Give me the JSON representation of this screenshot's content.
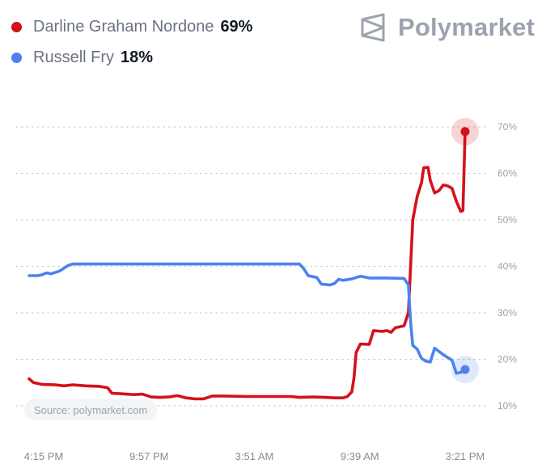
{
  "brand": {
    "name": "Polymarket",
    "logo_icon": "polymarket-logo-icon"
  },
  "source_note": "Source: polymarket.com",
  "chart_data": {
    "type": "line",
    "x_tick_labels": [
      "4:15 PM",
      "9:57 PM",
      "3:51 AM",
      "9:39 AM",
      "3:21 PM"
    ],
    "y_tick_labels": [
      "10%",
      "20%",
      "30%",
      "40%",
      "50%",
      "60%",
      "70%"
    ],
    "ylim": [
      10,
      70
    ],
    "grid": true,
    "legend_position": "top-left",
    "series": [
      {
        "name": "Darline Graham Nordone",
        "current_label": "69%",
        "color": "#d5111a",
        "values": [
          [
            0.0,
            15.8
          ],
          [
            0.01,
            15.0
          ],
          [
            0.03,
            14.6
          ],
          [
            0.06,
            14.5
          ],
          [
            0.08,
            14.3
          ],
          [
            0.1,
            14.5
          ],
          [
            0.13,
            14.3
          ],
          [
            0.16,
            14.2
          ],
          [
            0.18,
            13.9
          ],
          [
            0.19,
            12.7
          ],
          [
            0.21,
            12.6
          ],
          [
            0.24,
            12.4
          ],
          [
            0.26,
            12.5
          ],
          [
            0.28,
            11.9
          ],
          [
            0.3,
            11.8
          ],
          [
            0.32,
            11.9
          ],
          [
            0.34,
            12.2
          ],
          [
            0.36,
            11.7
          ],
          [
            0.38,
            11.5
          ],
          [
            0.4,
            11.5
          ],
          [
            0.42,
            12.1
          ],
          [
            0.45,
            12.1
          ],
          [
            0.5,
            12.0
          ],
          [
            0.55,
            12.0
          ],
          [
            0.6,
            12.0
          ],
          [
            0.62,
            11.8
          ],
          [
            0.65,
            11.9
          ],
          [
            0.68,
            11.8
          ],
          [
            0.7,
            11.7
          ],
          [
            0.72,
            11.7
          ],
          [
            0.73,
            12.0
          ],
          [
            0.74,
            13.0
          ],
          [
            0.745,
            16.0
          ],
          [
            0.75,
            21.5
          ],
          [
            0.76,
            23.3
          ],
          [
            0.78,
            23.2
          ],
          [
            0.79,
            26.2
          ],
          [
            0.81,
            26.0
          ],
          [
            0.82,
            26.2
          ],
          [
            0.83,
            25.8
          ],
          [
            0.84,
            26.8
          ],
          [
            0.86,
            27.2
          ],
          [
            0.87,
            30.0
          ],
          [
            0.875,
            40.0
          ],
          [
            0.88,
            50.0
          ],
          [
            0.89,
            55.0
          ],
          [
            0.9,
            58.0
          ],
          [
            0.905,
            61.2
          ],
          [
            0.915,
            61.3
          ],
          [
            0.92,
            58.5
          ],
          [
            0.93,
            55.8
          ],
          [
            0.94,
            56.3
          ],
          [
            0.95,
            57.5
          ],
          [
            0.96,
            57.3
          ],
          [
            0.97,
            56.8
          ],
          [
            0.98,
            54.0
          ],
          [
            0.99,
            51.8
          ],
          [
            0.995,
            52.0
          ],
          [
            1.0,
            69.0
          ]
        ]
      },
      {
        "name": "Russell Fry",
        "current_label": "18%",
        "color": "#4b82f0",
        "values": [
          [
            0.0,
            38.0
          ],
          [
            0.02,
            38.0
          ],
          [
            0.03,
            38.2
          ],
          [
            0.04,
            38.6
          ],
          [
            0.05,
            38.4
          ],
          [
            0.07,
            39.0
          ],
          [
            0.09,
            40.2
          ],
          [
            0.1,
            40.5
          ],
          [
            0.15,
            40.5
          ],
          [
            0.2,
            40.5
          ],
          [
            0.3,
            40.5
          ],
          [
            0.4,
            40.5
          ],
          [
            0.5,
            40.5
          ],
          [
            0.6,
            40.5
          ],
          [
            0.62,
            40.5
          ],
          [
            0.63,
            39.5
          ],
          [
            0.64,
            38.0
          ],
          [
            0.66,
            37.6
          ],
          [
            0.67,
            36.2
          ],
          [
            0.69,
            36.0
          ],
          [
            0.7,
            36.3
          ],
          [
            0.71,
            37.2
          ],
          [
            0.72,
            37.0
          ],
          [
            0.74,
            37.3
          ],
          [
            0.75,
            37.6
          ],
          [
            0.76,
            37.9
          ],
          [
            0.78,
            37.5
          ],
          [
            0.82,
            37.5
          ],
          [
            0.86,
            37.4
          ],
          [
            0.87,
            36.0
          ],
          [
            0.875,
            28.0
          ],
          [
            0.88,
            23.0
          ],
          [
            0.89,
            22.2
          ],
          [
            0.9,
            20.2
          ],
          [
            0.91,
            19.6
          ],
          [
            0.92,
            19.4
          ],
          [
            0.93,
            22.4
          ],
          [
            0.95,
            21.0
          ],
          [
            0.97,
            19.8
          ],
          [
            0.98,
            17.0
          ],
          [
            0.99,
            17.2
          ],
          [
            1.0,
            17.8
          ]
        ]
      }
    ]
  }
}
